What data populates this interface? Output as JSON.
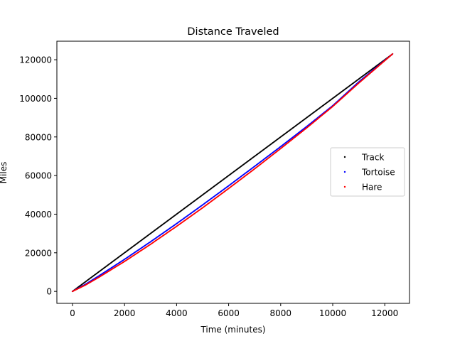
{
  "chart_data": {
    "type": "scatter",
    "title": "Distance Traveled",
    "xlabel": "Time (minutes)",
    "ylabel": "Miles",
    "xlim": [
      -600,
      12950
    ],
    "ylim": [
      -6200,
      129600
    ],
    "xticks": [
      0,
      2000,
      4000,
      6000,
      8000,
      10000,
      12000
    ],
    "yticks": [
      0,
      20000,
      40000,
      60000,
      80000,
      100000,
      120000
    ],
    "grid": false,
    "legend_position": "center-right",
    "series": [
      {
        "name": "Track",
        "color": "#000000",
        "points": [
          [
            0,
            0
          ],
          [
            500,
            5000
          ],
          [
            1000,
            10000
          ],
          [
            2000,
            20000
          ],
          [
            3000,
            30000
          ],
          [
            4000,
            40000
          ],
          [
            5000,
            50000
          ],
          [
            6000,
            60000
          ],
          [
            7000,
            70000
          ],
          [
            8000,
            80000
          ],
          [
            9000,
            90000
          ],
          [
            10000,
            100000
          ],
          [
            11000,
            110000
          ],
          [
            12300,
            123000
          ]
        ]
      },
      {
        "name": "Tortoise",
        "color": "#0000ff",
        "points": [
          [
            0,
            0
          ],
          [
            500,
            3700
          ],
          [
            1000,
            7900
          ],
          [
            2000,
            16600
          ],
          [
            3000,
            25700
          ],
          [
            4000,
            35100
          ],
          [
            5000,
            44800
          ],
          [
            6000,
            54700
          ],
          [
            7000,
            64800
          ],
          [
            8000,
            75000
          ],
          [
            9000,
            85400
          ],
          [
            10000,
            96200
          ],
          [
            11000,
            108500
          ],
          [
            12300,
            123000
          ]
        ]
      },
      {
        "name": "Hare",
        "color": "#ff0000",
        "points": [
          [
            0,
            0
          ],
          [
            500,
            3300
          ],
          [
            1000,
            7200
          ],
          [
            2000,
            15500
          ],
          [
            3000,
            24400
          ],
          [
            4000,
            33700
          ],
          [
            5000,
            43300
          ],
          [
            6000,
            53300
          ],
          [
            7000,
            63500
          ],
          [
            8000,
            74000
          ],
          [
            9000,
            84700
          ],
          [
            10000,
            95800
          ],
          [
            11000,
            107900
          ],
          [
            12300,
            123000
          ]
        ]
      }
    ]
  }
}
